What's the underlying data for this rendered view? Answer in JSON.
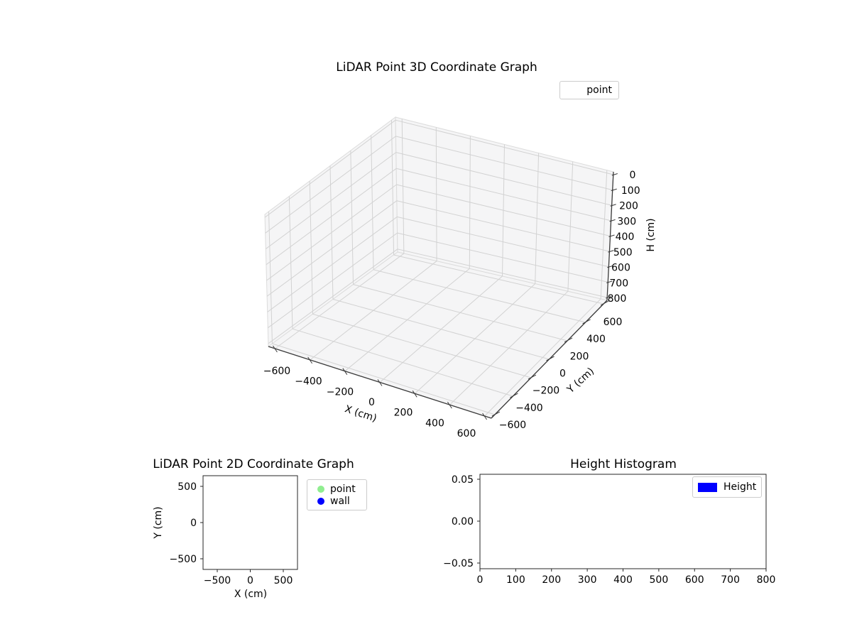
{
  "figure": {
    "background": "#ffffff"
  },
  "colors": {
    "point": "#90ee90",
    "wall": "#0000ff",
    "height": "#0000ff",
    "grid": "#d2d2d2",
    "pane": "#f5f5f6",
    "pane_edge": "#dcdcdc",
    "spine": "#3a3a3a",
    "frame": "#262626",
    "text": "#000000"
  },
  "chart_data": [
    {
      "id": "lidar-3d",
      "type": "scatter",
      "projection": "3d",
      "title": "LiDAR Point 3D Coordinate Graph",
      "xlabel": "X (cm)",
      "ylabel": "Y (cm)",
      "zlabel": "H (cm)",
      "xticks": [
        -600,
        -400,
        -200,
        0,
        200,
        400,
        600
      ],
      "yticks": [
        -600,
        -400,
        -200,
        0,
        200,
        400,
        600
      ],
      "zticks": [
        0,
        100,
        200,
        300,
        400,
        500,
        600,
        700,
        800
      ],
      "xtick_labels": [
        "−600",
        "−400",
        "−200",
        "0",
        "200",
        "400",
        "600"
      ],
      "ytick_labels": [
        "−600",
        "−400",
        "−200",
        "0",
        "200",
        "400",
        "600"
      ],
      "ztick_labels": [
        "0",
        "100",
        "200",
        "300",
        "400",
        "500",
        "600",
        "700",
        "800"
      ],
      "zaxis_inverted": true,
      "grid": true,
      "series": [
        {
          "name": "point",
          "points": []
        }
      ],
      "legend": [
        {
          "label": "point",
          "marker": "none"
        }
      ],
      "legend_position": "upper right outside"
    },
    {
      "id": "lidar-2d",
      "type": "scatter",
      "title": "LiDAR Point 2D Coordinate Graph",
      "xlabel": "X (cm)",
      "ylabel": "Y (cm)",
      "xticks": [
        -500,
        0,
        500
      ],
      "yticks": [
        500,
        0,
        -500
      ],
      "xtick_labels": [
        "−500",
        "0",
        "500"
      ],
      "ytick_labels": [
        "500",
        "0",
        "−500"
      ],
      "xlim": [
        -715,
        715
      ],
      "ylim": [
        -655,
        655
      ],
      "grid": false,
      "series": [
        {
          "name": "point",
          "color": "#90ee90",
          "points": []
        },
        {
          "name": "wall",
          "color": "#0000ff",
          "points": []
        }
      ],
      "legend": [
        {
          "label": "point",
          "color": "#90ee90",
          "marker": "dot"
        },
        {
          "label": "wall",
          "color": "#0000ff",
          "marker": "dot"
        }
      ],
      "legend_position": "right outside"
    },
    {
      "id": "height-histogram",
      "type": "bar",
      "title": "Height Histogram",
      "xlabel": "",
      "ylabel": "",
      "xticks": [
        0,
        100,
        200,
        300,
        400,
        500,
        600,
        700,
        800
      ],
      "yticks": [
        0.05,
        0.0,
        -0.05
      ],
      "xtick_labels": [
        "0",
        "100",
        "200",
        "300",
        "400",
        "500",
        "600",
        "700",
        "800"
      ],
      "ytick_labels": [
        "0.05",
        "0.00",
        "−0.05"
      ],
      "xlim": [
        0,
        800
      ],
      "ylim": [
        -0.055,
        0.055
      ],
      "grid": false,
      "values": [],
      "legend": [
        {
          "label": "Height",
          "color": "#0000ff",
          "marker": "patch"
        }
      ],
      "legend_position": "upper right inside"
    }
  ]
}
